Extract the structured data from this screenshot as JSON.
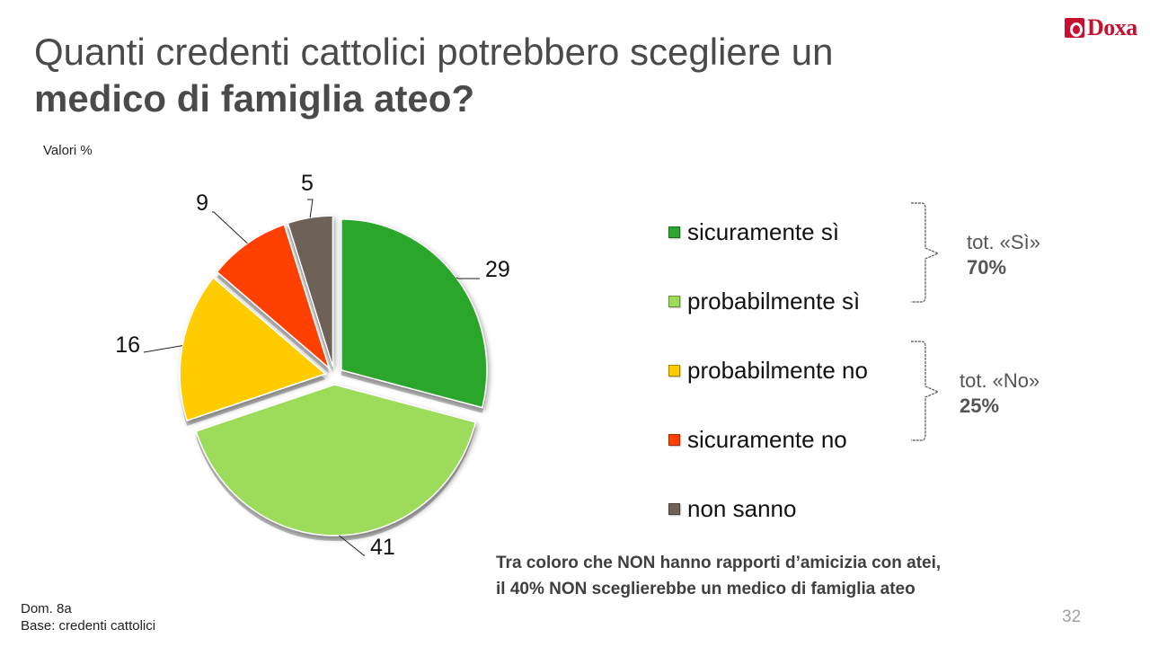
{
  "brand": {
    "logo_text": "Doxa"
  },
  "title": {
    "line1": "Quanti credenti cattolici potrebbero scegliere un",
    "line2": "medico di famiglia ateo?"
  },
  "values_label": "Valori %",
  "chart_data": {
    "type": "pie",
    "unit": "%",
    "slices": [
      {
        "label": "sicuramente sì",
        "value": 29,
        "color": "#2ca62c"
      },
      {
        "label": "probabilmente sì",
        "value": 41,
        "color": "#9ddb5a"
      },
      {
        "label": "probabilmente no",
        "value": 16,
        "color": "#ffcc00"
      },
      {
        "label": "sicuramente no",
        "value": 9,
        "color": "#ff4000"
      },
      {
        "label": "non sanno",
        "value": 5,
        "color": "#6e6259"
      }
    ],
    "exploded": true,
    "legend_position": "right"
  },
  "totals": {
    "yes": {
      "label": "tot. «Sì»",
      "value": "70%"
    },
    "no": {
      "label": "tot. «No»",
      "value": "25%"
    }
  },
  "note": {
    "line1": "Tra coloro che NON hanno rapporti d’amicizia con atei,",
    "line2": "il 40% NON  sceglierebbe un medico di famiglia ateo"
  },
  "footer": {
    "question": "Dom. 8a",
    "base": "Base: credenti cattolici"
  },
  "page_number": "32"
}
